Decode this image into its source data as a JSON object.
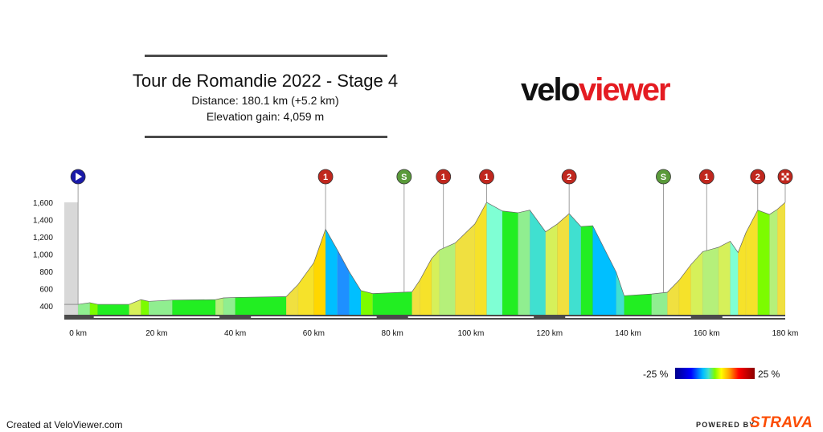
{
  "header": {
    "title": "Tour de Romandie 2022 - Stage 4",
    "distance": "Distance: 180.1 km (+5.2 km)",
    "elevation": "Elevation gain: 4,059 m"
  },
  "logo": {
    "part1": "velo",
    "part2": "viewer"
  },
  "legend": {
    "min_label": "-25 %",
    "max_label": "25 %"
  },
  "footer": {
    "created": "Created at VeloViewer.com",
    "powered": "POWERED BY",
    "strava": "STRAVA"
  },
  "colors": {
    "brand_red": "#e41c22",
    "strava_orange": "#fc4c02",
    "climb_marker": "#c0271e",
    "sprint_marker": "#5a9a3a",
    "start_marker": "#1a1aa8"
  },
  "chart_data": {
    "type": "area",
    "title": "",
    "xlabel": "",
    "ylabel": "",
    "xlim": [
      -3.5,
      180
    ],
    "ylim": [
      300,
      1600
    ],
    "x_ticks": [
      0,
      20,
      40,
      60,
      80,
      100,
      120,
      140,
      160,
      180
    ],
    "x_tick_labels": [
      "0 km",
      "20 km",
      "40 km",
      "60 km",
      "80 km",
      "100 km",
      "120 km",
      "140 km",
      "160 km",
      "180 km"
    ],
    "y_ticks": [
      400,
      600,
      800,
      1000,
      1200,
      1400,
      1600
    ],
    "y_tick_labels": [
      "400",
      "600",
      "800",
      "1,000",
      "1,200",
      "1,400",
      "1,600"
    ],
    "pre_start_gray": true,
    "profile": [
      {
        "x": -3.5,
        "y": 420,
        "grad": 0
      },
      {
        "x": 0,
        "y": 420,
        "grad": 0
      },
      {
        "x": 3,
        "y": 440,
        "grad": 1
      },
      {
        "x": 5,
        "y": 420,
        "grad": -1
      },
      {
        "x": 13,
        "y": 420,
        "grad": 0
      },
      {
        "x": 16,
        "y": 475,
        "grad": 3
      },
      {
        "x": 18,
        "y": 455,
        "grad": -1
      },
      {
        "x": 24,
        "y": 470,
        "grad": 1
      },
      {
        "x": 35,
        "y": 475,
        "grad": 0
      },
      {
        "x": 37,
        "y": 495,
        "grad": 2
      },
      {
        "x": 40,
        "y": 500,
        "grad": 1
      },
      {
        "x": 53,
        "y": 510,
        "grad": 0
      },
      {
        "x": 56,
        "y": 650,
        "grad": 5
      },
      {
        "x": 60,
        "y": 900,
        "grad": 7
      },
      {
        "x": 63,
        "y": 1290,
        "grad": 10
      },
      {
        "x": 66,
        "y": 1050,
        "grad": -8
      },
      {
        "x": 69,
        "y": 800,
        "grad": -9
      },
      {
        "x": 72,
        "y": 580,
        "grad": -8
      },
      {
        "x": 75,
        "y": 545,
        "grad": -1
      },
      {
        "x": 85,
        "y": 565,
        "grad": 0
      },
      {
        "x": 87,
        "y": 700,
        "grad": 6
      },
      {
        "x": 90,
        "y": 950,
        "grad": 8
      },
      {
        "x": 92,
        "y": 1050,
        "grad": 4
      },
      {
        "x": 96,
        "y": 1130,
        "grad": 2
      },
      {
        "x": 101,
        "y": 1350,
        "grad": 5
      },
      {
        "x": 104,
        "y": 1600,
        "grad": 8
      },
      {
        "x": 108,
        "y": 1500,
        "grad": -3
      },
      {
        "x": 112,
        "y": 1480,
        "grad": 0
      },
      {
        "x": 115,
        "y": 1510,
        "grad": 1
      },
      {
        "x": 119,
        "y": 1260,
        "grad": -6
      },
      {
        "x": 122,
        "y": 1350,
        "grad": 3
      },
      {
        "x": 125,
        "y": 1470,
        "grad": 5
      },
      {
        "x": 128,
        "y": 1320,
        "grad": -5
      },
      {
        "x": 131,
        "y": 1330,
        "grad": 0
      },
      {
        "x": 137,
        "y": 790,
        "grad": -8
      },
      {
        "x": 139,
        "y": 520,
        "grad": -6
      },
      {
        "x": 146,
        "y": 540,
        "grad": 0
      },
      {
        "x": 150,
        "y": 560,
        "grad": 1
      },
      {
        "x": 153,
        "y": 700,
        "grad": 6
      },
      {
        "x": 156,
        "y": 880,
        "grad": 7
      },
      {
        "x": 159,
        "y": 1030,
        "grad": 4
      },
      {
        "x": 163,
        "y": 1080,
        "grad": 2
      },
      {
        "x": 166,
        "y": 1150,
        "grad": 3
      },
      {
        "x": 168,
        "y": 1020,
        "grad": -3
      },
      {
        "x": 170,
        "y": 1250,
        "grad": 7
      },
      {
        "x": 173,
        "y": 1510,
        "grad": 8
      },
      {
        "x": 176,
        "y": 1460,
        "grad": -1
      },
      {
        "x": 178,
        "y": 1520,
        "grad": 2
      },
      {
        "x": 180,
        "y": 1600,
        "grad": 5
      }
    ],
    "markers": [
      {
        "x": 0,
        "label": "",
        "kind": "start"
      },
      {
        "x": 63,
        "label": "1",
        "kind": "climb"
      },
      {
        "x": 83,
        "label": "S",
        "kind": "sprint"
      },
      {
        "x": 93,
        "label": "1",
        "kind": "climb"
      },
      {
        "x": 104,
        "label": "1",
        "kind": "climb"
      },
      {
        "x": 125,
        "label": "2",
        "kind": "climb"
      },
      {
        "x": 149,
        "label": "S",
        "kind": "sprint"
      },
      {
        "x": 160,
        "label": "1",
        "kind": "climb"
      },
      {
        "x": 173,
        "label": "2",
        "kind": "climb"
      },
      {
        "x": 180,
        "label": "",
        "kind": "finish"
      }
    ]
  }
}
